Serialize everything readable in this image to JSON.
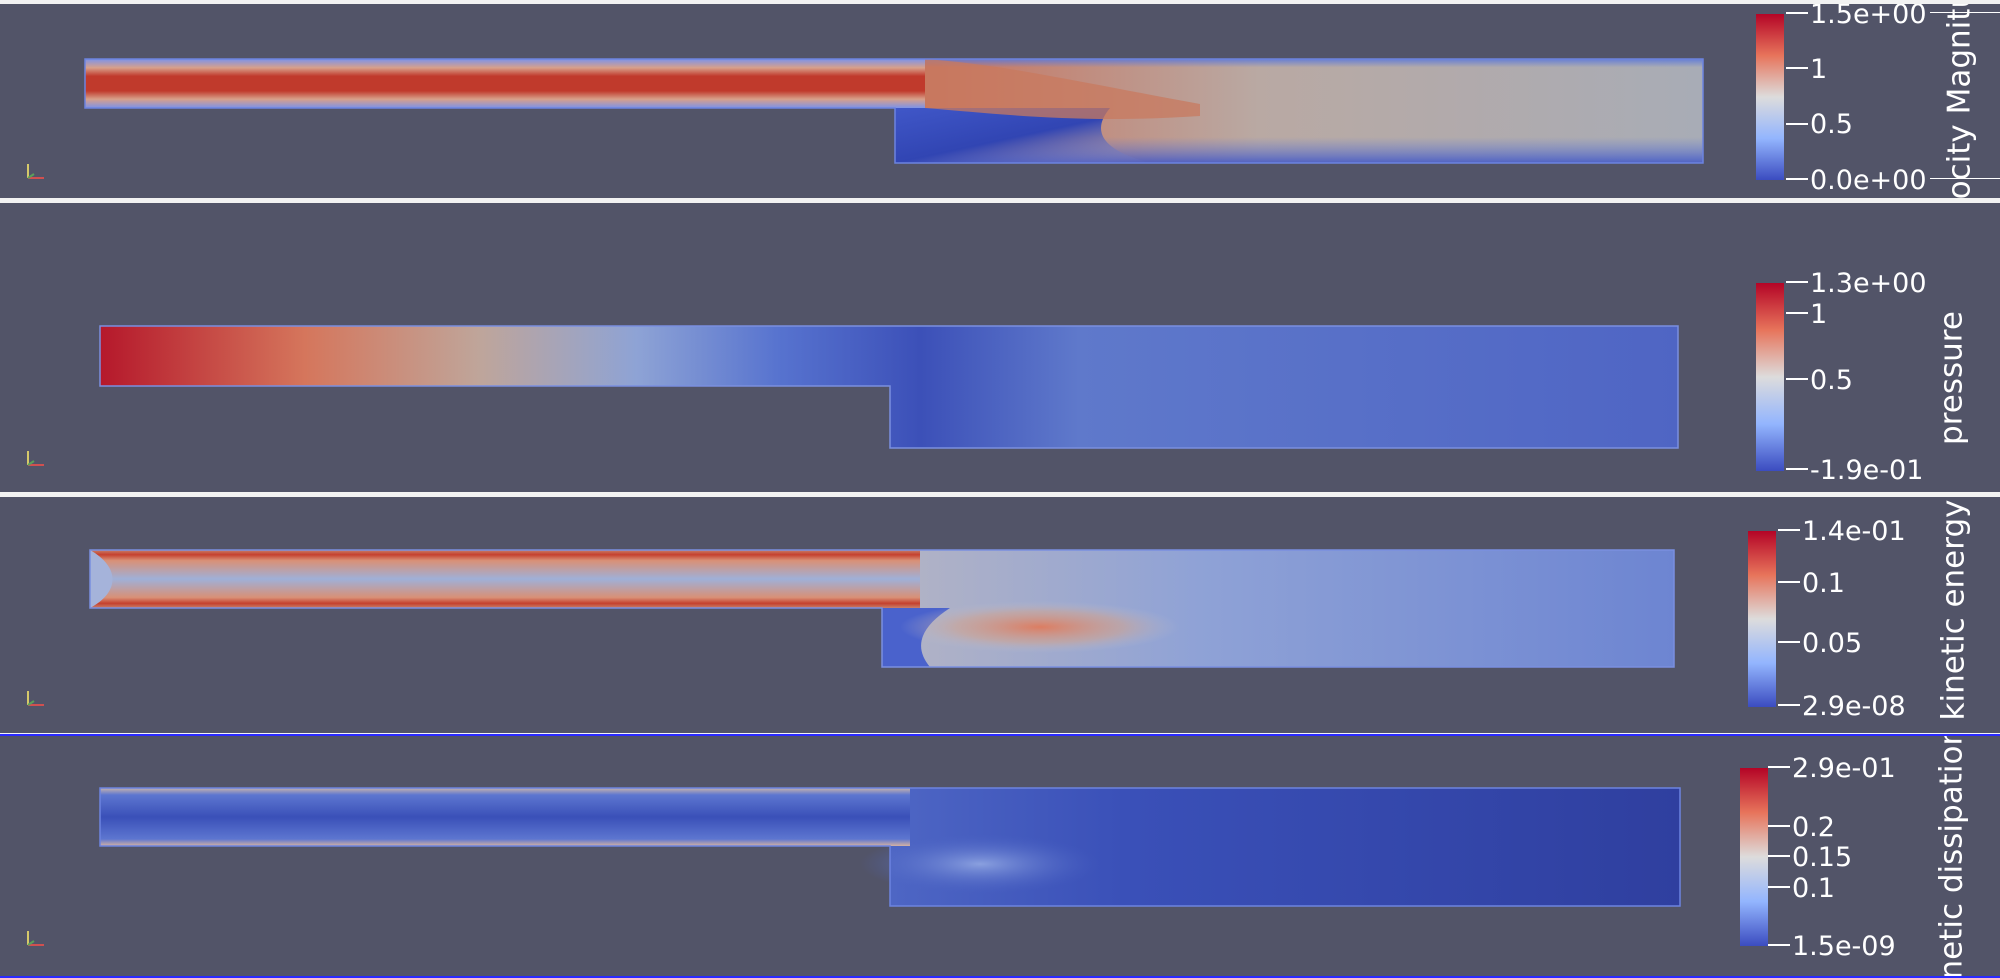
{
  "panels": [
    {
      "field": "velocity",
      "title": "Velocity Magnitude",
      "ticks": [
        "1.5e+00",
        "1",
        "0.5",
        "0.0e+00"
      ],
      "colors": {
        "high": "#b40426",
        "mid": "#d6d6d6",
        "low": "#3b4cc0"
      }
    },
    {
      "field": "pressure",
      "title": "pressure",
      "ticks": [
        "1.3e+00",
        "1",
        "0.5",
        "-1.9e-01"
      ],
      "colors": {
        "high": "#b40426",
        "mid": "#d6d6d6",
        "low": "#3b4cc0"
      }
    },
    {
      "field": "kinetic_energy",
      "title": "kinetic energy",
      "ticks": [
        "1.4e-01",
        "0.1",
        "0.05",
        "2.9e-08"
      ],
      "colors": {
        "high": "#b40426",
        "mid": "#d6d6d6",
        "low": "#3b4cc0"
      }
    },
    {
      "field": "kinetic_dissipation",
      "title": "kinetic dissipation",
      "ticks": [
        "2.9e-01",
        "0.2",
        "0.15",
        "0.1",
        "1.5e-09"
      ],
      "colors": {
        "high": "#b40426",
        "mid": "#d6d6d6",
        "low": "#3b4cc0"
      }
    }
  ],
  "colors": {
    "background": "#525468",
    "active_border": "#2a2aff"
  }
}
